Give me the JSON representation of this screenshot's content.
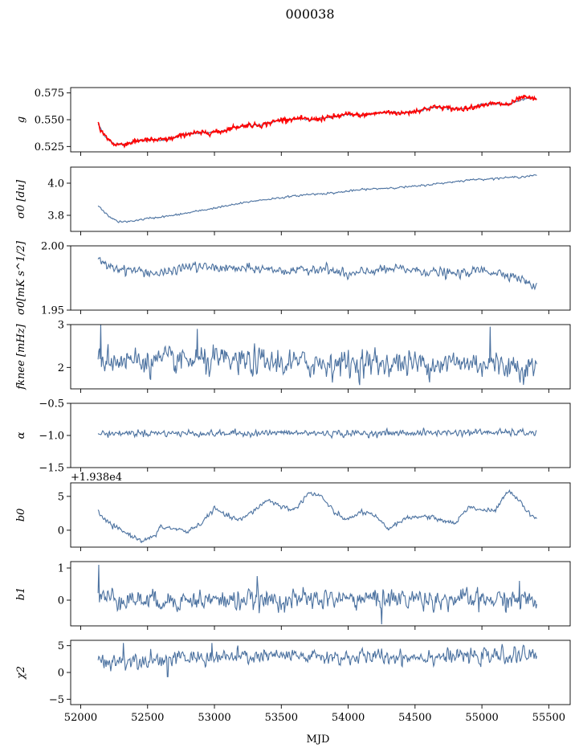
{
  "chart_data": {
    "type": "line",
    "title": "000038",
    "xlabel": "MJD",
    "shared_x": {
      "xlim": [
        51925,
        55660
      ],
      "ticks": [
        52000,
        52500,
        53000,
        53500,
        54000,
        54500,
        55000,
        55500
      ],
      "tick_labels": [
        "52000",
        "52500",
        "53000",
        "53500",
        "54000",
        "54500",
        "55000",
        "55500"
      ],
      "data_range": [
        52130,
        55410
      ]
    },
    "colors": {
      "series": "#4c72a0",
      "overlay": "#ff0000"
    },
    "panels": [
      {
        "id": "g",
        "ylabel": "g",
        "ylim": [
          0.52,
          0.58
        ],
        "yticks": [
          0.525,
          0.55,
          0.575
        ],
        "ytick_labels": [
          "0.525",
          "0.550",
          "0.575"
        ],
        "grid": false,
        "series": [
          {
            "style": "line",
            "color": "#4c72a0",
            "noise": 0.0006,
            "points": [
              [
                52130,
                0.546
              ],
              [
                52180,
                0.535
              ],
              [
                52250,
                0.527
              ],
              [
                52320,
                0.527
              ],
              [
                52450,
                0.531
              ],
              [
                52600,
                0.531
              ],
              [
                52700,
                0.533
              ],
              [
                52800,
                0.537
              ],
              [
                52950,
                0.538
              ],
              [
                53050,
                0.539
              ],
              [
                53150,
                0.543
              ],
              [
                53250,
                0.545
              ],
              [
                53350,
                0.545
              ],
              [
                53500,
                0.55
              ],
              [
                53650,
                0.551
              ],
              [
                53700,
                0.55
              ],
              [
                53800,
                0.551
              ],
              [
                53900,
                0.553
              ],
              [
                54000,
                0.555
              ],
              [
                54100,
                0.554
              ],
              [
                54200,
                0.556
              ],
              [
                54300,
                0.557
              ],
              [
                54400,
                0.556
              ],
              [
                54500,
                0.558
              ],
              [
                54650,
                0.562
              ],
              [
                54800,
                0.56
              ],
              [
                54900,
                0.561
              ],
              [
                55000,
                0.564
              ],
              [
                55100,
                0.565
              ],
              [
                55200,
                0.564
              ],
              [
                55300,
                0.569
              ],
              [
                55410,
                0.57
              ]
            ]
          },
          {
            "style": "scatter",
            "color": "#ff0000",
            "noise": 0.0015,
            "points": [
              [
                52130,
                0.548
              ],
              [
                52150,
                0.54
              ],
              [
                52180,
                0.535
              ],
              [
                52250,
                0.527
              ],
              [
                52320,
                0.527
              ],
              [
                52450,
                0.531
              ],
              [
                52600,
                0.531
              ],
              [
                52700,
                0.533
              ],
              [
                52800,
                0.537
              ],
              [
                52950,
                0.538
              ],
              [
                53050,
                0.539
              ],
              [
                53150,
                0.543
              ],
              [
                53250,
                0.545
              ],
              [
                53350,
                0.545
              ],
              [
                53500,
                0.55
              ],
              [
                53650,
                0.551
              ],
              [
                53700,
                0.55
              ],
              [
                53800,
                0.551
              ],
              [
                53900,
                0.553
              ],
              [
                54000,
                0.555
              ],
              [
                54100,
                0.554
              ],
              [
                54200,
                0.556
              ],
              [
                54300,
                0.557
              ],
              [
                54400,
                0.556
              ],
              [
                54500,
                0.558
              ],
              [
                54650,
                0.562
              ],
              [
                54800,
                0.56
              ],
              [
                54900,
                0.561
              ],
              [
                55000,
                0.564
              ],
              [
                55100,
                0.565
              ],
              [
                55200,
                0.564
              ],
              [
                55300,
                0.571
              ],
              [
                55410,
                0.569
              ]
            ]
          }
        ]
      },
      {
        "id": "sigma0_du",
        "ylabel": "σ0 [du]",
        "ylim": [
          3.7,
          4.1
        ],
        "yticks": [
          3.8,
          4.0
        ],
        "ytick_labels": [
          "3.8",
          "4.0"
        ],
        "grid": false,
        "series": [
          {
            "style": "line",
            "color": "#4c72a0",
            "noise": 0.004,
            "points": [
              [
                52130,
                3.86
              ],
              [
                52200,
                3.8
              ],
              [
                52280,
                3.76
              ],
              [
                52350,
                3.76
              ],
              [
                52500,
                3.78
              ],
              [
                52700,
                3.8
              ],
              [
                52900,
                3.83
              ],
              [
                53100,
                3.86
              ],
              [
                53300,
                3.89
              ],
              [
                53500,
                3.91
              ],
              [
                53700,
                3.93
              ],
              [
                53900,
                3.94
              ],
              [
                54100,
                3.96
              ],
              [
                54300,
                3.97
              ],
              [
                54500,
                3.98
              ],
              [
                54700,
                4.0
              ],
              [
                54900,
                4.02
              ],
              [
                55100,
                4.03
              ],
              [
                55300,
                4.04
              ],
              [
                55410,
                4.05
              ]
            ]
          }
        ]
      },
      {
        "id": "sigma0_mK",
        "ylabel": "σ0[mK s^1/2]",
        "ylim": [
          1.95,
          2.0
        ],
        "yticks": [
          1.95,
          2.0
        ],
        "ytick_labels": [
          "1.95",
          "2.00"
        ],
        "grid": false,
        "series": [
          {
            "style": "line",
            "color": "#4c72a0",
            "noise": 0.0025,
            "points": [
              [
                52130,
                1.988
              ],
              [
                52250,
                1.983
              ],
              [
                52400,
                1.981
              ],
              [
                52600,
                1.978
              ],
              [
                52800,
                1.984
              ],
              [
                53000,
                1.983
              ],
              [
                53200,
                1.982
              ],
              [
                53400,
                1.982
              ],
              [
                53600,
                1.98
              ],
              [
                53800,
                1.983
              ],
              [
                54000,
                1.977
              ],
              [
                54200,
                1.981
              ],
              [
                54400,
                1.982
              ],
              [
                54600,
                1.98
              ],
              [
                54800,
                1.978
              ],
              [
                55000,
                1.981
              ],
              [
                55200,
                1.978
              ],
              [
                55300,
                1.974
              ],
              [
                55410,
                1.967
              ]
            ]
          }
        ]
      },
      {
        "id": "fknee",
        "ylabel": "fknee [mHz]",
        "ylim": [
          1.5,
          3.0
        ],
        "yticks": [
          2,
          3
        ],
        "ytick_labels": [
          "2",
          "3"
        ],
        "grid": false,
        "series": [
          {
            "style": "line",
            "color": "#4c72a0",
            "noise": 0.22,
            "spikes": [
              [
                52150,
                3.0
              ],
              [
                52870,
                2.9
              ],
              [
                55060,
                2.95
              ]
            ],
            "points": [
              [
                52130,
                2.2
              ],
              [
                52500,
                2.15
              ],
              [
                53000,
                2.15
              ],
              [
                53500,
                2.1
              ],
              [
                54000,
                2.1
              ],
              [
                54500,
                2.1
              ],
              [
                55000,
                2.1
              ],
              [
                55410,
                2.0
              ]
            ]
          }
        ]
      },
      {
        "id": "alpha",
        "ylabel": "α",
        "ylim": [
          -1.5,
          -0.5
        ],
        "yticks": [
          -1.5,
          -1.0,
          -0.5
        ],
        "ytick_labels": [
          "−1.5",
          "−1.0",
          "−0.5"
        ],
        "grid": false,
        "series": [
          {
            "style": "line",
            "color": "#4c72a0",
            "noise": 0.035,
            "points": [
              [
                52130,
                -0.97
              ],
              [
                52500,
                -0.96
              ],
              [
                53000,
                -0.97
              ],
              [
                53500,
                -0.96
              ],
              [
                54000,
                -0.97
              ],
              [
                54500,
                -0.96
              ],
              [
                55000,
                -0.95
              ],
              [
                55410,
                -0.96
              ]
            ]
          }
        ]
      },
      {
        "id": "b0",
        "ylabel": "b0",
        "offset_label": "+1.938e4",
        "ylim": [
          -2.5,
          7
        ],
        "yticks": [
          0,
          5
        ],
        "ytick_labels": [
          "0",
          "5"
        ],
        "grid": false,
        "series": [
          {
            "style": "line",
            "color": "#4c72a0",
            "noise": 0.25,
            "points": [
              [
                52130,
                3.0
              ],
              [
                52150,
                2.0
              ],
              [
                52250,
                0.5
              ],
              [
                52350,
                -0.5
              ],
              [
                52450,
                -1.5
              ],
              [
                52550,
                -1.0
              ],
              [
                52600,
                0.5
              ],
              [
                52700,
                0.2
              ],
              [
                52800,
                -0.2
              ],
              [
                52900,
                1.0
              ],
              [
                53000,
                3.2
              ],
              [
                53100,
                2.0
              ],
              [
                53200,
                1.5
              ],
              [
                53300,
                3.0
              ],
              [
                53400,
                4.5
              ],
              [
                53500,
                3.5
              ],
              [
                53600,
                3.0
              ],
              [
                53700,
                5.5
              ],
              [
                53800,
                5.0
              ],
              [
                53900,
                2.5
              ],
              [
                54000,
                1.5
              ],
              [
                54100,
                2.8
              ],
              [
                54200,
                2.0
              ],
              [
                54300,
                0.2
              ],
              [
                54400,
                1.5
              ],
              [
                54500,
                2.0
              ],
              [
                54600,
                2.0
              ],
              [
                54700,
                1.5
              ],
              [
                54800,
                1.0
              ],
              [
                54900,
                3.5
              ],
              [
                55000,
                3.0
              ],
              [
                55100,
                2.8
              ],
              [
                55200,
                6.0
              ],
              [
                55300,
                4.0
              ],
              [
                55350,
                2.5
              ],
              [
                55410,
                1.8
              ]
            ]
          }
        ]
      },
      {
        "id": "b1",
        "ylabel": "b1",
        "ylim": [
          -0.8,
          1.2
        ],
        "yticks": [
          0,
          1
        ],
        "ytick_labels": [
          "0",
          "1"
        ],
        "grid": false,
        "series": [
          {
            "style": "line",
            "color": "#4c72a0",
            "noise": 0.22,
            "spikes": [
              [
                52135,
                1.1
              ],
              [
                53320,
                0.75
              ],
              [
                54250,
                -0.75
              ],
              [
                55280,
                0.6
              ]
            ],
            "points": [
              [
                52130,
                0.1
              ],
              [
                52500,
                0.0
              ],
              [
                53000,
                0.0
              ],
              [
                53500,
                0.0
              ],
              [
                54000,
                0.05
              ],
              [
                54500,
                0.05
              ],
              [
                55000,
                0.0
              ],
              [
                55410,
                0.0
              ]
            ]
          }
        ]
      },
      {
        "id": "chi2",
        "ylabel": "χ2",
        "ylim": [
          -6,
          6
        ],
        "yticks": [
          -5,
          0,
          5
        ],
        "ytick_labels": [
          "−5",
          "0",
          "5"
        ],
        "grid": false,
        "series": [
          {
            "style": "line",
            "color": "#4c72a0",
            "noise": 1.0,
            "spikes": [
              [
                52320,
                5.5
              ],
              [
                52980,
                5.5
              ],
              [
                52650,
                -0.8
              ]
            ],
            "points": [
              [
                52130,
                2.0
              ],
              [
                52500,
                2.5
              ],
              [
                53000,
                2.8
              ],
              [
                53500,
                3.0
              ],
              [
                54000,
                2.8
              ],
              [
                54500,
                3.0
              ],
              [
                55000,
                3.0
              ],
              [
                55410,
                3.2
              ]
            ]
          }
        ]
      }
    ]
  }
}
